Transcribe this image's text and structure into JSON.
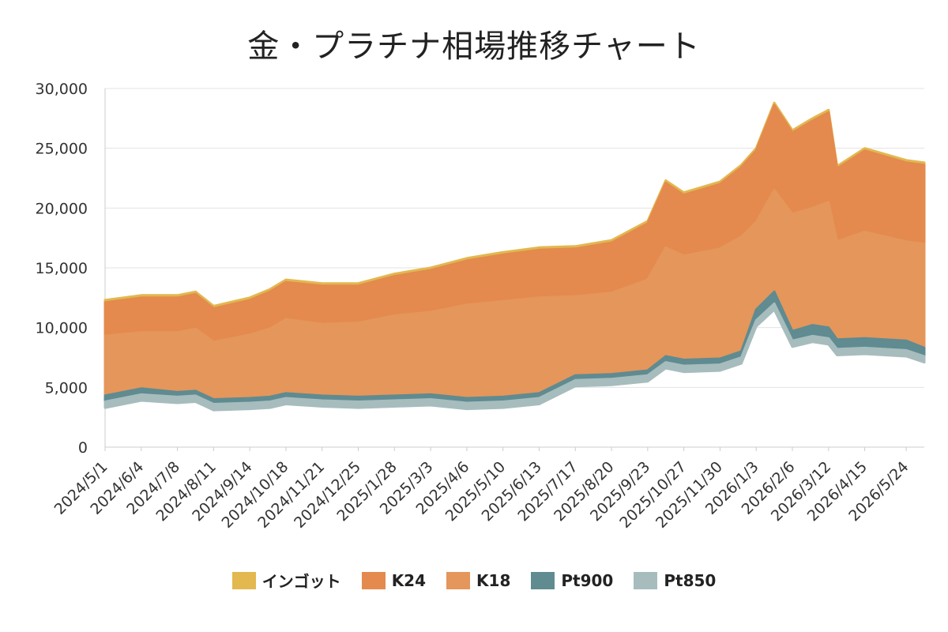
{
  "chart_data": {
    "type": "area",
    "title": "金・プラチナ相場推移チャート",
    "xlabel": "",
    "ylabel": "",
    "ylim": [
      0,
      30000
    ],
    "y_ticks": [
      "0",
      "5,000",
      "10,000",
      "15,000",
      "20,000",
      "25,000",
      "30,000"
    ],
    "y_tick_values": [
      0,
      5000,
      10000,
      15000,
      20000,
      25000,
      30000
    ],
    "x_ticks": [
      "2024/5/1",
      "2024/6/4",
      "2024/7/8",
      "2024/8/11",
      "2024/9/14",
      "2024/10/18",
      "2024/11/21",
      "2024/12/25",
      "2025/1/28",
      "2025/3/3",
      "2025/4/6",
      "2025/5/10",
      "2025/6/13",
      "2025/7/17",
      "2025/8/20",
      "2025/9/23",
      "2025/10/27",
      "2025/11/30",
      "2026/1/3",
      "2026/2/6",
      "2026/3/12",
      "2026/4/15",
      "2026/5/24"
    ],
    "x": [
      "2024/5/1",
      "2024/6/4",
      "2024/7/8",
      "2024/7/25",
      "2024/8/11",
      "2024/9/14",
      "2024/10/3",
      "2024/10/18",
      "2024/11/21",
      "2024/12/25",
      "2025/1/28",
      "2025/3/3",
      "2025/4/6",
      "2025/5/10",
      "2025/6/13",
      "2025/7/17",
      "2025/8/20",
      "2025/9/23",
      "2025/10/10",
      "2025/10/27",
      "2025/11/30",
      "2025/12/20",
      "2026/1/3",
      "2026/1/20",
      "2026/2/6",
      "2026/2/25",
      "2026/3/12",
      "2026/3/20",
      "2026/4/15",
      "2026/5/24",
      "2026/6/10"
    ],
    "series": [
      {
        "name": "インゴット",
        "color": "#e2b84f",
        "values": [
          12300,
          12700,
          12700,
          13000,
          11800,
          12500,
          13200,
          14000,
          13700,
          13700,
          14500,
          15000,
          15800,
          16300,
          16700,
          16800,
          17300,
          18900,
          22300,
          21300,
          22200,
          23600,
          25000,
          28800,
          26500,
          27500,
          28200,
          23500,
          25000,
          24000,
          23800
        ]
      },
      {
        "name": "K24",
        "color": "#e48a4e",
        "values": [
          12100,
          12500,
          12500,
          12800,
          11600,
          12300,
          13000,
          13800,
          13500,
          13500,
          14300,
          14800,
          15600,
          16100,
          16500,
          16600,
          17100,
          18700,
          22100,
          21100,
          22000,
          23400,
          24800,
          28600,
          26300,
          27300,
          28000,
          23300,
          24800,
          23800,
          23600
        ]
      },
      {
        "name": "K18",
        "color": "#e5965b",
        "values": [
          9300,
          9600,
          9600,
          9900,
          8800,
          9400,
          9900,
          10700,
          10300,
          10400,
          11000,
          11300,
          11900,
          12200,
          12500,
          12600,
          12900,
          14000,
          16700,
          16000,
          16600,
          17600,
          18800,
          21500,
          19500,
          20000,
          20500,
          17200,
          18000,
          17200,
          17000
        ]
      },
      {
        "name": "Pt900",
        "color": "#5f8b91",
        "values": [
          4300,
          4900,
          4600,
          4700,
          4000,
          4100,
          4200,
          4500,
          4300,
          4200,
          4300,
          4400,
          4100,
          4200,
          4500,
          6000,
          6100,
          6400,
          7600,
          7300,
          7400,
          8000,
          11500,
          13000,
          9700,
          10200,
          10000,
          9000,
          9100,
          8900,
          8300
        ]
      },
      {
        "name": "Pt850",
        "color": "#a7bcbd",
        "values": [
          3800,
          4400,
          4200,
          4300,
          3600,
          3700,
          3800,
          4100,
          3900,
          3800,
          3900,
          4000,
          3700,
          3800,
          4100,
          5600,
          5700,
          6000,
          7100,
          6800,
          6900,
          7500,
          10600,
          12000,
          8900,
          9300,
          9100,
          8200,
          8300,
          8100,
          7600
        ]
      }
    ],
    "grid": true,
    "legend_position": "bottom"
  }
}
